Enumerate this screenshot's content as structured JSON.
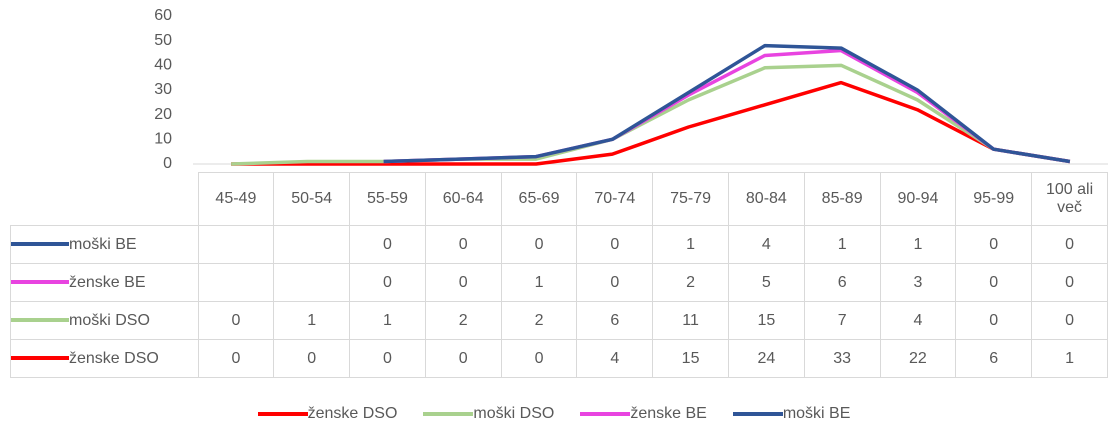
{
  "chart_data": {
    "type": "line",
    "stacked": true,
    "categories": [
      "45-49",
      "50-54",
      "55-59",
      "60-64",
      "65-69",
      "70-74",
      "75-79",
      "80-84",
      "85-89",
      "90-94",
      "95-99",
      "100 ali več"
    ],
    "series": [
      {
        "name": "ženske DSO",
        "color": "#ff0000",
        "values": [
          0,
          0,
          0,
          0,
          0,
          4,
          15,
          24,
          33,
          22,
          6,
          1
        ]
      },
      {
        "name": "moški DSO",
        "color": "#a9d18e",
        "values": [
          0,
          1,
          1,
          2,
          2,
          6,
          11,
          15,
          7,
          4,
          0,
          0
        ]
      },
      {
        "name": "ženske BE",
        "color": "#e844e0",
        "values": [
          null,
          null,
          0,
          0,
          1,
          0,
          2,
          5,
          6,
          3,
          0,
          0
        ]
      },
      {
        "name": "moški BE",
        "color": "#2f5597",
        "values": [
          null,
          null,
          0,
          0,
          0,
          0,
          1,
          4,
          1,
          1,
          0,
          0
        ]
      }
    ],
    "ylim": [
      0,
      60
    ],
    "yticks": [
      0,
      10,
      20,
      30,
      40,
      50,
      60
    ],
    "grid": false,
    "data_table": true,
    "legend": "bottom"
  }
}
